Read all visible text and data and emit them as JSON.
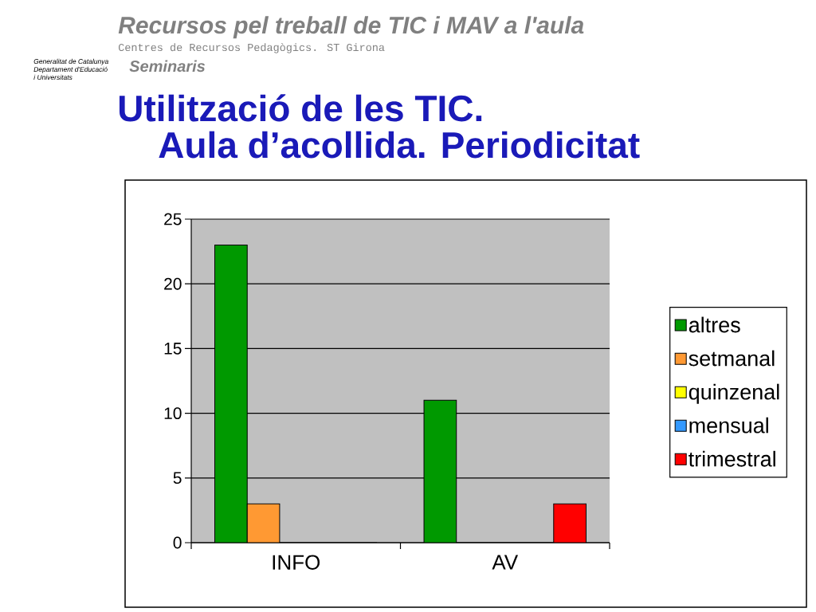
{
  "chart_data": {
    "type": "bar",
    "title": "Utilització de les TIC.",
    "subtitle": "Aula d’acollida. Periodicitat",
    "categories": [
      "INFO",
      "AV"
    ],
    "series": [
      {
        "name": "altres",
        "color": "#009900",
        "values": [
          23,
          11
        ]
      },
      {
        "name": "setmanal",
        "color": "#ff9933",
        "values": [
          3,
          0
        ]
      },
      {
        "name": "quinzenal",
        "color": "#ffff00",
        "values": [
          0,
          0
        ]
      },
      {
        "name": "mensual",
        "color": "#3399ff",
        "values": [
          0,
          0
        ]
      },
      {
        "name": "trimestral",
        "color": "#ff0000",
        "values": [
          0,
          3
        ]
      }
    ],
    "ylim": [
      0,
      25
    ],
    "yticks": [
      0,
      5,
      10,
      15,
      20,
      25
    ],
    "grid": "y",
    "legend": "right",
    "annotations": [
      "Recursos pel treball de TIC i MAV a l'aula",
      "Centres de Recursos Pedagògics. ST Girona",
      "Seminaris",
      "Generalitat de Catalunya",
      "Departament d'Educació",
      "i Universitats"
    ]
  }
}
